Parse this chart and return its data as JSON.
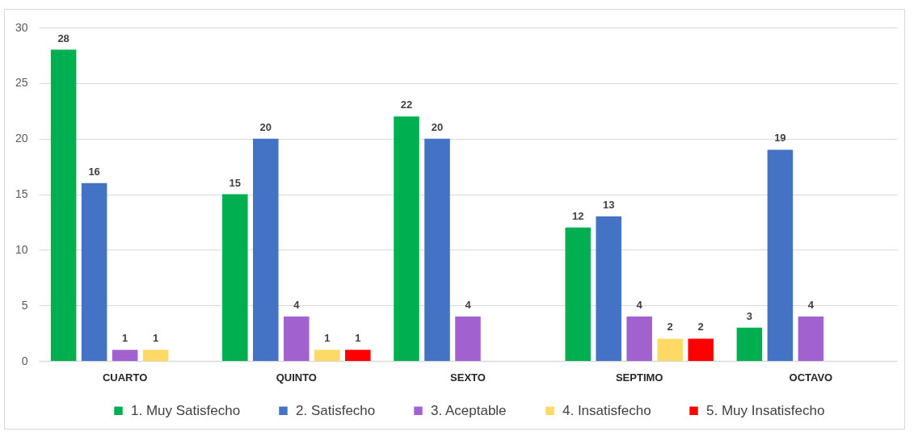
{
  "chart_data": {
    "type": "bar",
    "categories": [
      "CUARTO",
      "QUINTO",
      "SEXTO",
      "SEPTIMO",
      "OCTAVO"
    ],
    "series": [
      {
        "name": "1. Muy Satisfecho",
        "color": "#00b050",
        "values": [
          28,
          15,
          22,
          12,
          3
        ]
      },
      {
        "name": "2. Satisfecho",
        "color": "#4472c4",
        "values": [
          16,
          20,
          20,
          13,
          19
        ]
      },
      {
        "name": "3. Aceptable",
        "color": "#a162d0",
        "values": [
          1,
          4,
          4,
          4,
          4
        ]
      },
      {
        "name": "4. Insatisfecho",
        "color": "#ffd966",
        "values": [
          1,
          1,
          null,
          2,
          null
        ]
      },
      {
        "name": "5. Muy Insatisfecho",
        "color": "#ff0000",
        "values": [
          null,
          1,
          null,
          2,
          null
        ]
      }
    ],
    "ylim": [
      0,
      30
    ],
    "yticks": [
      0,
      5,
      10,
      15,
      20,
      25,
      30
    ],
    "grid": "y",
    "legend": "bottom",
    "data_labels": true
  }
}
